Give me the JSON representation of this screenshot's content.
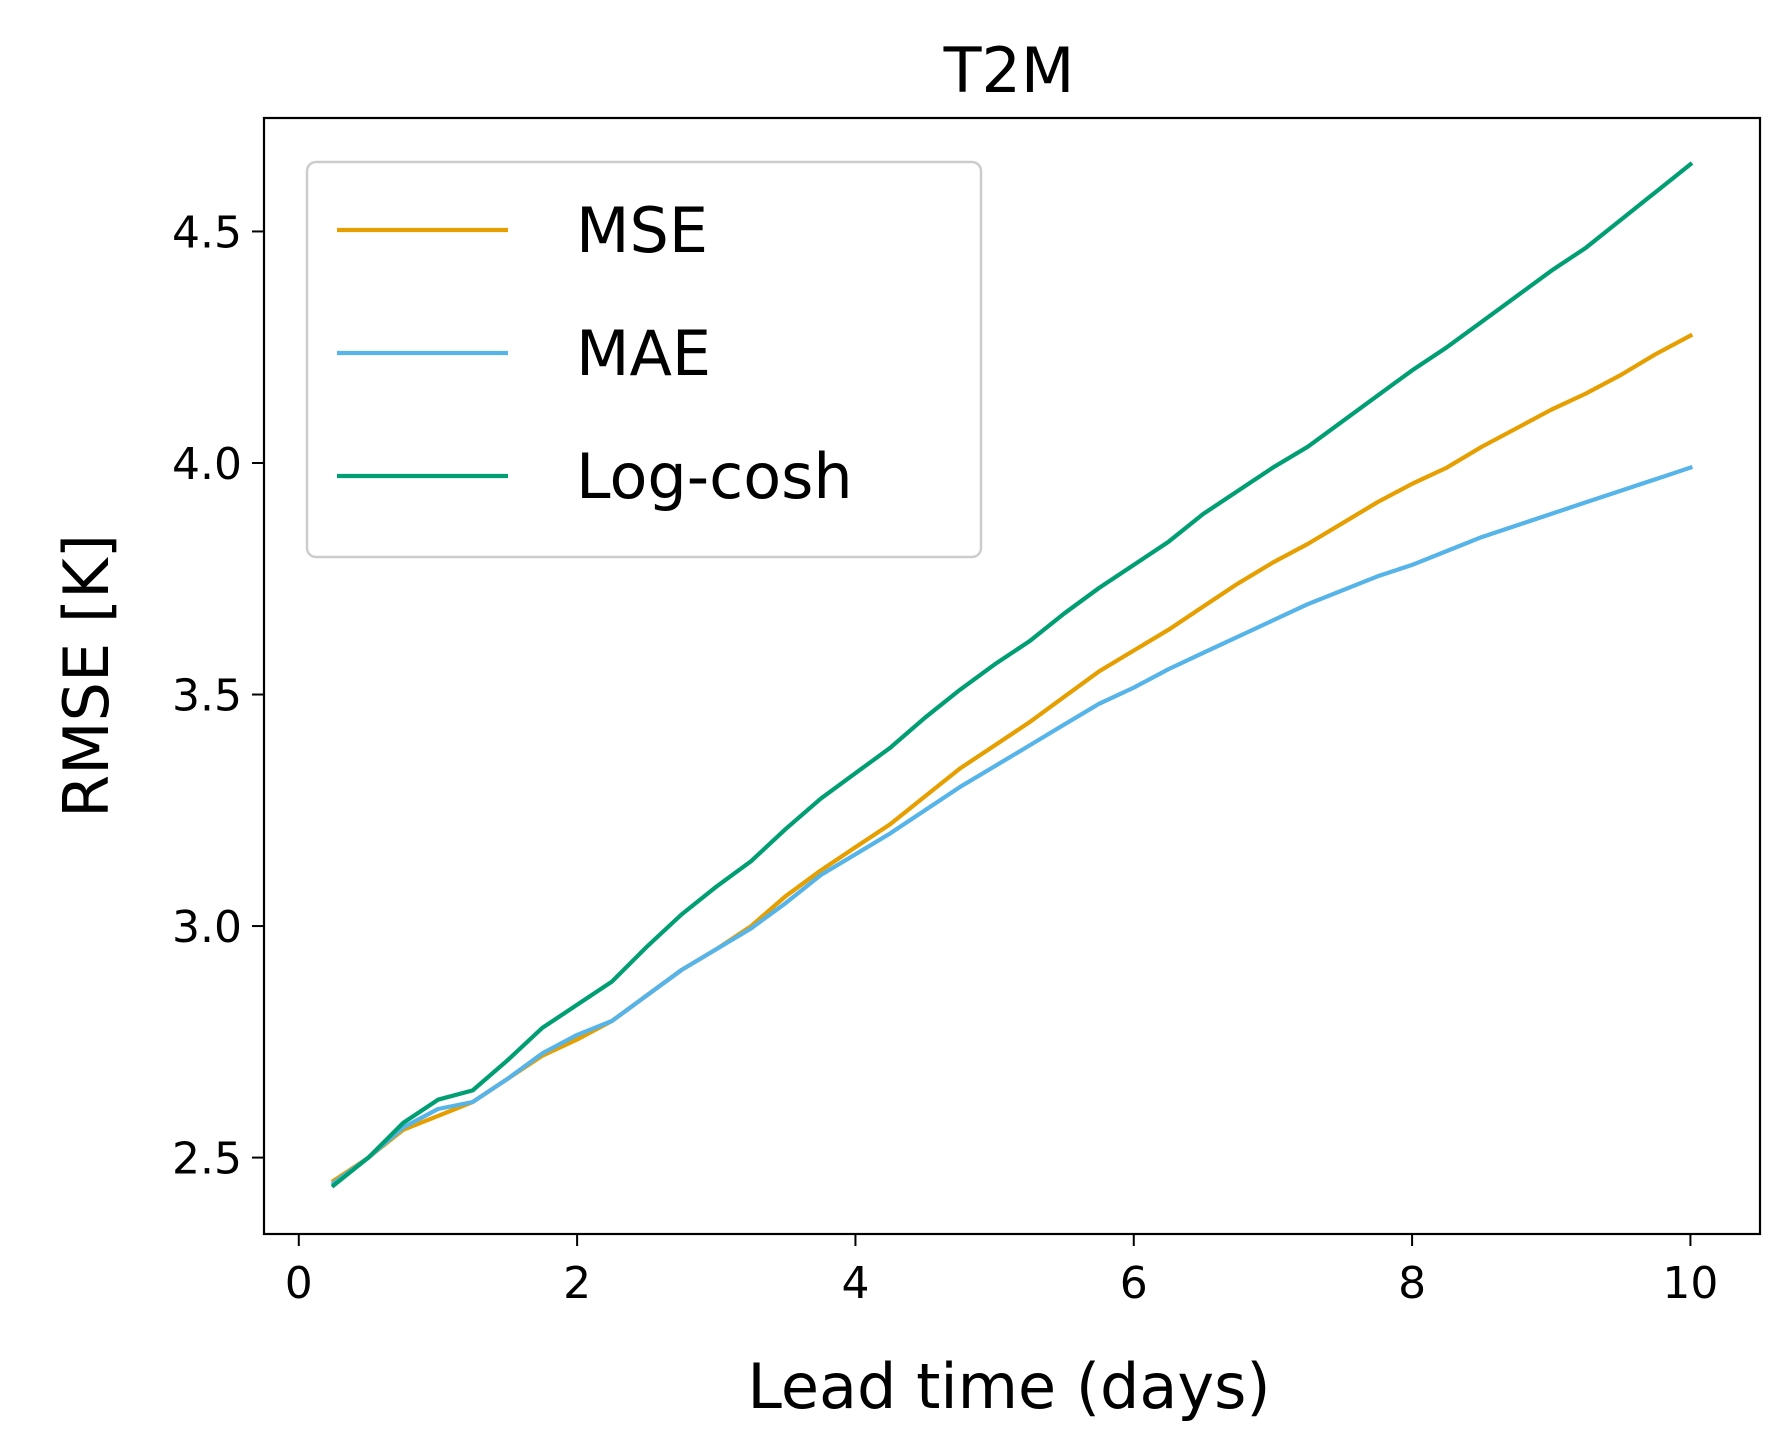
{
  "chart_data": {
    "type": "line",
    "title": "T2M",
    "xlabel": "Lead time (days)",
    "ylabel": "RMSE [K]",
    "xlim": [
      -0.25,
      10.5
    ],
    "ylim": [
      2.335,
      4.745
    ],
    "xticks": [
      0,
      2,
      4,
      6,
      8,
      10
    ],
    "xtick_labels": [
      "0",
      "2",
      "4",
      "6",
      "8",
      "10"
    ],
    "yticks": [
      2.5,
      3.0,
      3.5,
      4.0,
      4.5
    ],
    "ytick_labels": [
      "2.5",
      "3.0",
      "3.5",
      "4.0",
      "4.5"
    ],
    "grid": false,
    "legend_position": "top-left",
    "x": [
      0.25,
      0.5,
      0.75,
      1.0,
      1.25,
      1.5,
      1.75,
      2.0,
      2.25,
      2.5,
      2.75,
      3.0,
      3.25,
      3.5,
      3.75,
      4.0,
      4.25,
      4.5,
      4.75,
      5.0,
      5.25,
      5.5,
      5.75,
      6.0,
      6.25,
      6.5,
      6.75,
      7.0,
      7.25,
      7.5,
      7.75,
      8.0,
      8.25,
      8.5,
      8.75,
      9.0,
      9.25,
      9.5,
      9.75,
      10.0
    ],
    "series": [
      {
        "name": "MSE",
        "color": "#e69f00",
        "values": [
          2.45,
          2.5,
          2.56,
          2.59,
          2.62,
          2.67,
          2.72,
          2.755,
          2.795,
          2.85,
          2.905,
          2.95,
          3.0,
          3.065,
          3.12,
          3.17,
          3.22,
          3.28,
          3.34,
          3.39,
          3.44,
          3.495,
          3.55,
          3.595,
          3.64,
          3.69,
          3.74,
          3.785,
          3.825,
          3.87,
          3.915,
          3.955,
          3.99,
          4.035,
          4.075,
          4.115,
          4.15,
          4.19,
          4.235,
          4.275
        ]
      },
      {
        "name": "MAE",
        "color": "#56b4e9",
        "values": [
          2.445,
          2.5,
          2.565,
          2.605,
          2.62,
          2.67,
          2.725,
          2.765,
          2.795,
          2.85,
          2.905,
          2.95,
          2.995,
          3.05,
          3.11,
          3.155,
          3.2,
          3.25,
          3.3,
          3.345,
          3.39,
          3.435,
          3.48,
          3.515,
          3.555,
          3.59,
          3.625,
          3.66,
          3.695,
          3.725,
          3.755,
          3.78,
          3.81,
          3.84,
          3.865,
          3.89,
          3.915,
          3.94,
          3.965,
          3.99
        ]
      },
      {
        "name": "Log-cosh",
        "color": "#009e73",
        "values": [
          2.44,
          2.5,
          2.575,
          2.625,
          2.645,
          2.71,
          2.78,
          2.83,
          2.88,
          2.955,
          3.025,
          3.085,
          3.14,
          3.21,
          3.275,
          3.33,
          3.385,
          3.45,
          3.51,
          3.565,
          3.615,
          3.675,
          3.73,
          3.78,
          3.83,
          3.89,
          3.94,
          3.99,
          4.035,
          4.09,
          4.145,
          4.2,
          4.25,
          4.305,
          4.36,
          4.415,
          4.465,
          4.525,
          4.585,
          4.645
        ]
      }
    ]
  }
}
